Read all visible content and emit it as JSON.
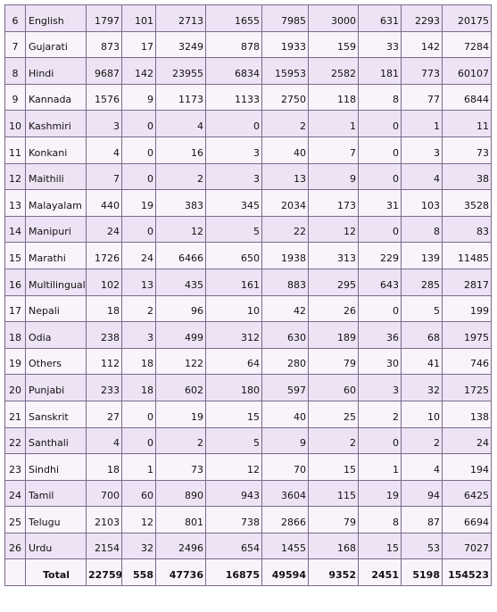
{
  "rows": [
    {
      "sr": "6",
      "lang": "English",
      "vals": [
        "1797",
        "101",
        "2713",
        "1655",
        "7985",
        "3000",
        "631",
        "2293",
        "20175"
      ]
    },
    {
      "sr": "7",
      "lang": "Gujarati",
      "vals": [
        "873",
        "17",
        "3249",
        "878",
        "1933",
        "159",
        "33",
        "142",
        "7284"
      ]
    },
    {
      "sr": "8",
      "lang": "Hindi",
      "vals": [
        "9687",
        "142",
        "23955",
        "6834",
        "15953",
        "2582",
        "181",
        "773",
        "60107"
      ]
    },
    {
      "sr": "9",
      "lang": "Kannada",
      "vals": [
        "1576",
        "9",
        "1173",
        "1133",
        "2750",
        "118",
        "8",
        "77",
        "6844"
      ]
    },
    {
      "sr": "10",
      "lang": "Kashmiri",
      "vals": [
        "3",
        "0",
        "4",
        "0",
        "2",
        "1",
        "0",
        "1",
        "11"
      ]
    },
    {
      "sr": "11",
      "lang": "Konkani",
      "vals": [
        "4",
        "0",
        "16",
        "3",
        "40",
        "7",
        "0",
        "3",
        "73"
      ]
    },
    {
      "sr": "12",
      "lang": "Maithili",
      "vals": [
        "7",
        "0",
        "2",
        "3",
        "13",
        "9",
        "0",
        "4",
        "38"
      ]
    },
    {
      "sr": "13",
      "lang": "Malayalam",
      "vals": [
        "440",
        "19",
        "383",
        "345",
        "2034",
        "173",
        "31",
        "103",
        "3528"
      ]
    },
    {
      "sr": "14",
      "lang": "Manipuri",
      "vals": [
        "24",
        "0",
        "12",
        "5",
        "22",
        "12",
        "0",
        "8",
        "83"
      ]
    },
    {
      "sr": "15",
      "lang": "Marathi",
      "vals": [
        "1726",
        "24",
        "6466",
        "650",
        "1938",
        "313",
        "229",
        "139",
        "11485"
      ]
    },
    {
      "sr": "16",
      "lang": "Multilingual",
      "vals": [
        "102",
        "13",
        "435",
        "161",
        "883",
        "295",
        "643",
        "285",
        "2817"
      ]
    },
    {
      "sr": "17",
      "lang": "Nepali",
      "vals": [
        "18",
        "2",
        "96",
        "10",
        "42",
        "26",
        "0",
        "5",
        "199"
      ]
    },
    {
      "sr": "18",
      "lang": "Odia",
      "vals": [
        "238",
        "3",
        "499",
        "312",
        "630",
        "189",
        "36",
        "68",
        "1975"
      ]
    },
    {
      "sr": "19",
      "lang": "Others",
      "vals": [
        "112",
        "18",
        "122",
        "64",
        "280",
        "79",
        "30",
        "41",
        "746"
      ]
    },
    {
      "sr": "20",
      "lang": "Punjabi",
      "vals": [
        "233",
        "18",
        "602",
        "180",
        "597",
        "60",
        "3",
        "32",
        "1725"
      ]
    },
    {
      "sr": "21",
      "lang": "Sanskrit",
      "vals": [
        "27",
        "0",
        "19",
        "15",
        "40",
        "25",
        "2",
        "10",
        "138"
      ]
    },
    {
      "sr": "22",
      "lang": "Santhali",
      "vals": [
        "4",
        "0",
        "2",
        "5",
        "9",
        "2",
        "0",
        "2",
        "24"
      ]
    },
    {
      "sr": "23",
      "lang": "Sindhi",
      "vals": [
        "18",
        "1",
        "73",
        "12",
        "70",
        "15",
        "1",
        "4",
        "194"
      ]
    },
    {
      "sr": "24",
      "lang": "Tamil",
      "vals": [
        "700",
        "60",
        "890",
        "943",
        "3604",
        "115",
        "19",
        "94",
        "6425"
      ]
    },
    {
      "sr": "25",
      "lang": "Telugu",
      "vals": [
        "2103",
        "12",
        "801",
        "738",
        "2866",
        "79",
        "8",
        "87",
        "6694"
      ]
    },
    {
      "sr": "26",
      "lang": "Urdu",
      "vals": [
        "2154",
        "32",
        "2496",
        "654",
        "1455",
        "168",
        "15",
        "53",
        "7027"
      ]
    }
  ],
  "total": {
    "label": "Total",
    "vals": [
      "22759",
      "558",
      "47736",
      "16875",
      "49594",
      "9352",
      "2451",
      "5198",
      "154523"
    ]
  }
}
